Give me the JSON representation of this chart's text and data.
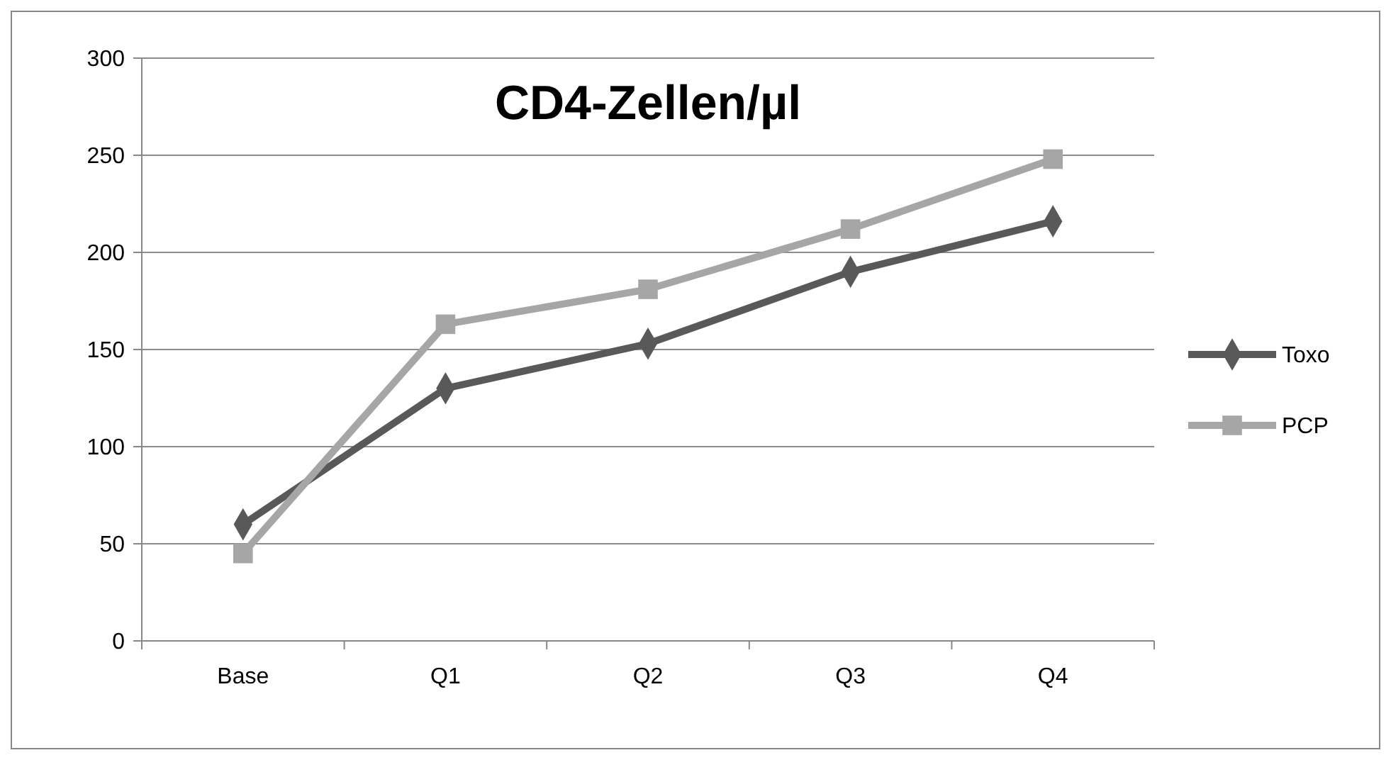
{
  "chart_data": {
    "type": "line",
    "title": "CD4-Zellen/µl",
    "categories": [
      "Base",
      "Q1",
      "Q2",
      "Q3",
      "Q4"
    ],
    "series": [
      {
        "name": "Toxo",
        "color": "#595959",
        "marker": "diamond",
        "values": [
          60,
          130,
          153,
          190,
          216
        ]
      },
      {
        "name": "PCP",
        "color": "#a6a6a6",
        "marker": "square",
        "values": [
          45,
          163,
          181,
          212,
          248
        ]
      }
    ],
    "ylim": [
      0,
      300
    ],
    "yticks": [
      0,
      50,
      100,
      150,
      200,
      250,
      300
    ],
    "grid": "y",
    "legend": "right",
    "line_style": "solid"
  }
}
